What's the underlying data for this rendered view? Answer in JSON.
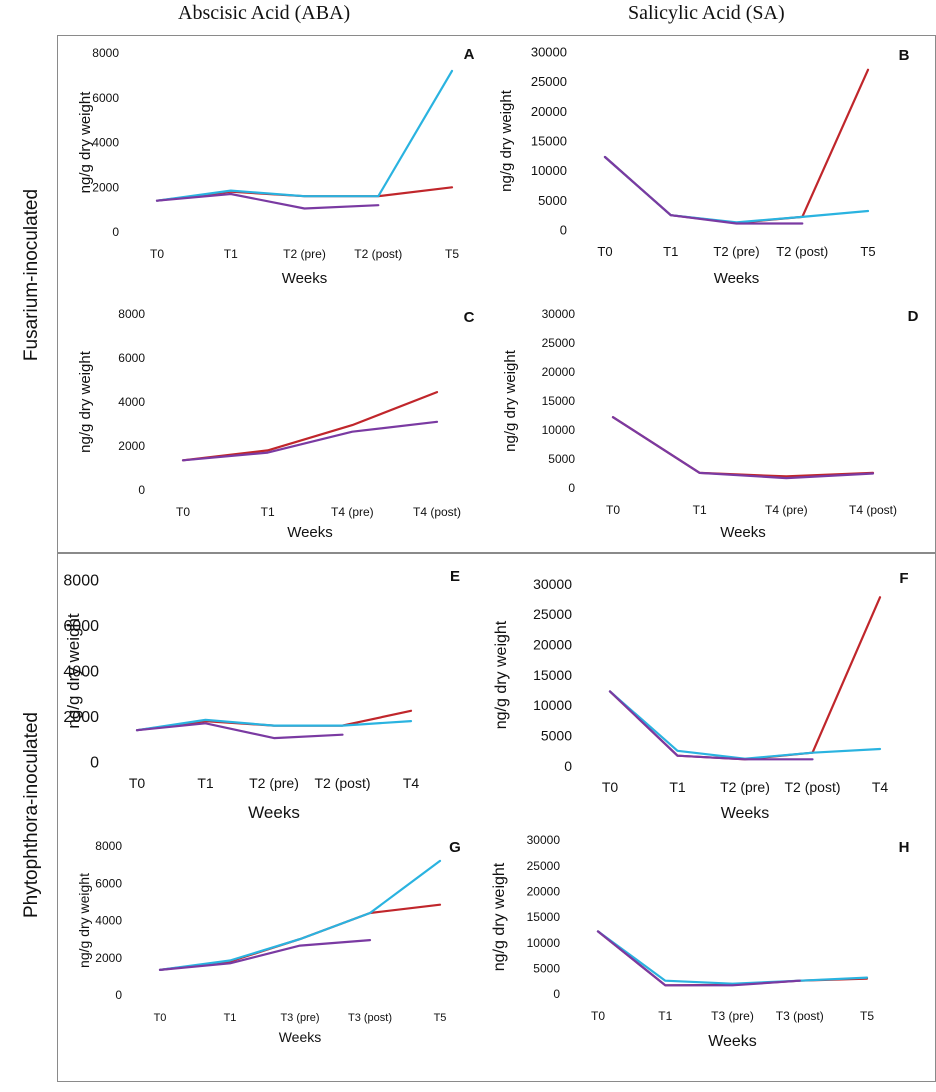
{
  "column_headers": [
    "Abscisic Acid (ABA)",
    "Salicylic Acid (SA)"
  ],
  "row_headers": [
    "Fusarium-inoculated",
    "Phytophthora-inoculated"
  ],
  "colors": {
    "red": "#c0262b",
    "blue": "#2ab3e0",
    "purple": "#7a3aa2"
  },
  "chart_data": [
    {
      "panel": "A",
      "type": "line",
      "categories": [
        "T0",
        "T1",
        "T2 (pre)",
        "T2 (post)",
        "T5"
      ],
      "xlabel": "Weeks",
      "ylabel": "ng/g dry weight",
      "ylim": [
        0,
        8000
      ],
      "yticks": [
        0,
        2000,
        4000,
        6000,
        8000
      ],
      "series": [
        {
          "color": "#c0262b",
          "values": [
            1400,
            1800,
            1600,
            1600,
            2000
          ]
        },
        {
          "color": "#2ab3e0",
          "values": [
            1400,
            1850,
            1600,
            1600,
            7200
          ]
        },
        {
          "color": "#7a3aa2",
          "values": [
            1400,
            1700,
            1050,
            1200,
            null
          ]
        }
      ]
    },
    {
      "panel": "B",
      "type": "line",
      "categories": [
        "T0",
        "T1",
        "T2 (pre)",
        "T2 (post)",
        "T5"
      ],
      "xlabel": "Weeks",
      "ylabel": "ng/g dry weight",
      "ylim": [
        0,
        30000
      ],
      "yticks": [
        0,
        5000,
        10000,
        15000,
        20000,
        25000,
        30000
      ],
      "series": [
        {
          "color": "#c0262b",
          "values": [
            12300,
            2500,
            1200,
            2200,
            27000
          ]
        },
        {
          "color": "#2ab3e0",
          "values": [
            12300,
            2500,
            1300,
            2200,
            3200
          ]
        },
        {
          "color": "#7a3aa2",
          "values": [
            12300,
            2500,
            1100,
            1100,
            null
          ]
        }
      ]
    },
    {
      "panel": "C",
      "type": "line",
      "categories": [
        "T0",
        "T1",
        "T4 (pre)",
        "T4 (post)"
      ],
      "xlabel": "Weeks",
      "ylabel": "ng/g dry weight",
      "ylim": [
        0,
        8000
      ],
      "yticks": [
        0,
        2000,
        4000,
        6000,
        8000
      ],
      "series": [
        {
          "color": "#c0262b",
          "values": [
            1350,
            1800,
            2950,
            4450
          ]
        },
        {
          "color": "#7a3aa2",
          "values": [
            1350,
            1700,
            2650,
            3100
          ]
        }
      ]
    },
    {
      "panel": "D",
      "type": "line",
      "categories": [
        "T0",
        "T1",
        "T4 (pre)",
        "T4 (post)"
      ],
      "xlabel": "Weeks",
      "ylabel": "ng/g dry weight",
      "ylim": [
        0,
        30000
      ],
      "yticks": [
        0,
        5000,
        10000,
        15000,
        20000,
        25000,
        30000
      ],
      "series": [
        {
          "color": "#c0262b",
          "values": [
            12200,
            2600,
            2000,
            2600
          ]
        },
        {
          "color": "#7a3aa2",
          "values": [
            12200,
            2600,
            1700,
            2500
          ]
        }
      ]
    },
    {
      "panel": "E",
      "type": "line",
      "categories": [
        "T0",
        "T1",
        "T2 (pre)",
        "T2 (post)",
        "T4"
      ],
      "xlabel": "Weeks",
      "ylabel": "ng/g dry weight",
      "ylim": [
        0,
        8000
      ],
      "yticks": [
        0,
        2000,
        4000,
        6000,
        8000
      ],
      "series": [
        {
          "color": "#c0262b",
          "values": [
            1400,
            1800,
            1600,
            1600,
            2250
          ]
        },
        {
          "color": "#2ab3e0",
          "values": [
            1400,
            1850,
            1600,
            1600,
            1800
          ]
        },
        {
          "color": "#7a3aa2",
          "values": [
            1400,
            1700,
            1050,
            1200,
            null
          ]
        }
      ]
    },
    {
      "panel": "F",
      "type": "line",
      "categories": [
        "T0",
        "T1",
        "T2 (pre)",
        "T2 (post)",
        "T4"
      ],
      "xlabel": "Weeks",
      "ylabel": "ng/g dry weight",
      "ylim": [
        0,
        30000
      ],
      "yticks": [
        0,
        5000,
        10000,
        15000,
        20000,
        25000,
        30000
      ],
      "series": [
        {
          "color": "#c0262b",
          "values": [
            12300,
            1700,
            1100,
            2200,
            27800
          ]
        },
        {
          "color": "#2ab3e0",
          "values": [
            12300,
            2500,
            1200,
            2200,
            2800
          ]
        },
        {
          "color": "#7a3aa2",
          "values": [
            12300,
            1700,
            1100,
            1100,
            null
          ]
        }
      ]
    },
    {
      "panel": "G",
      "type": "line",
      "categories": [
        "T0",
        "T1",
        "T3 (pre)",
        "T3 (post)",
        "T5"
      ],
      "xlabel": "Weeks",
      "ylabel": "ng/g dry weight",
      "ylim": [
        0,
        8000
      ],
      "yticks": [
        0,
        2000,
        4000,
        6000,
        8000
      ],
      "series": [
        {
          "color": "#c0262b",
          "values": [
            1350,
            1800,
            3000,
            4400,
            4850
          ]
        },
        {
          "color": "#2ab3e0",
          "values": [
            1350,
            1850,
            3000,
            4400,
            7200
          ]
        },
        {
          "color": "#7a3aa2",
          "values": [
            1350,
            1700,
            2650,
            2950,
            null
          ]
        }
      ]
    },
    {
      "panel": "H",
      "type": "line",
      "categories": [
        "T0",
        "T1",
        "T3 (pre)",
        "T3 (post)",
        "T5"
      ],
      "xlabel": "Weeks",
      "ylabel": "ng/g dry weight",
      "ylim": [
        0,
        30000
      ],
      "yticks": [
        0,
        5000,
        10000,
        15000,
        20000,
        25000,
        30000
      ],
      "series": [
        {
          "color": "#c0262b",
          "values": [
            12200,
            1700,
            1800,
            2600,
            3000
          ]
        },
        {
          "color": "#2ab3e0",
          "values": [
            12200,
            2600,
            2000,
            2600,
            3200
          ]
        },
        {
          "color": "#7a3aa2",
          "values": [
            12200,
            1700,
            1700,
            2600,
            null
          ]
        }
      ]
    }
  ]
}
